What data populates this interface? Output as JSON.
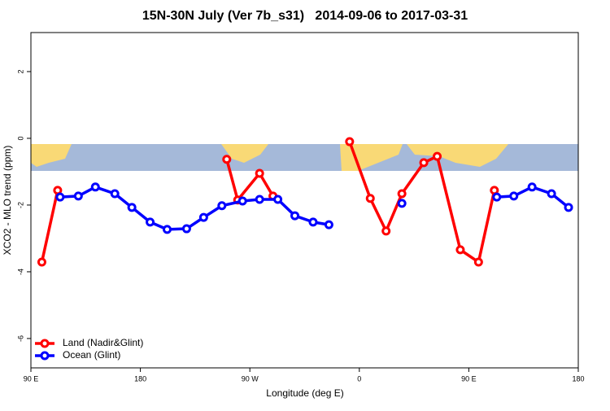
{
  "chart_data": {
    "type": "line",
    "title": "15N-30N July (Ver 7b_s31)   2014-09-06 to 2017-03-31",
    "x_label": "Longitude (deg E)",
    "y_label": "XCO2 - MLO trend (ppm)",
    "xlim": [
      90,
      540
    ],
    "ylim": [
      -6.88,
      3.17
    ],
    "xticks": [
      {
        "value": 90,
        "label": "90 E"
      },
      180,
      {
        "value": 270,
        "label": "90 W"
      },
      {
        "value": 360,
        "label": "0"
      },
      {
        "value": 450,
        "label": "90 E"
      },
      {
        "value": 540,
        "label": "180"
      }
    ],
    "yticks": [
      2,
      0,
      -2,
      -4,
      -6
    ],
    "legend": "bottom-left",
    "series": [
      {
        "name": "Land (Nadir&Glint)",
        "color": "#ff0000",
        "x": [
          99,
          112,
          null,
          251,
          260,
          278,
          289,
          null,
          352,
          369,
          382,
          395,
          413,
          424,
          443,
          458,
          471
        ],
        "values": [
          -3.71,
          -1.56,
          null,
          -0.63,
          -1.85,
          -1.05,
          -1.73,
          null,
          -0.1,
          -1.8,
          -2.78,
          -1.66,
          -0.73,
          -0.54,
          -3.34,
          -3.71,
          -1.56
        ]
      },
      {
        "name": "Ocean (Glint)",
        "color": "#0000ff",
        "x": [
          114,
          129,
          143,
          159,
          173,
          188,
          202,
          218,
          232,
          247,
          264,
          278,
          293,
          307,
          322,
          335,
          null,
          395,
          null,
          473,
          487,
          502,
          518,
          532
        ],
        "values": [
          -1.76,
          -1.73,
          -1.46,
          -1.66,
          -2.07,
          -2.51,
          -2.73,
          -2.71,
          -2.37,
          -2.02,
          -1.88,
          -1.83,
          -1.83,
          -2.32,
          -2.51,
          -2.59,
          null,
          -1.95,
          null,
          -1.76,
          -1.73,
          -1.46,
          -1.66,
          -2.07
        ]
      }
    ]
  }
}
